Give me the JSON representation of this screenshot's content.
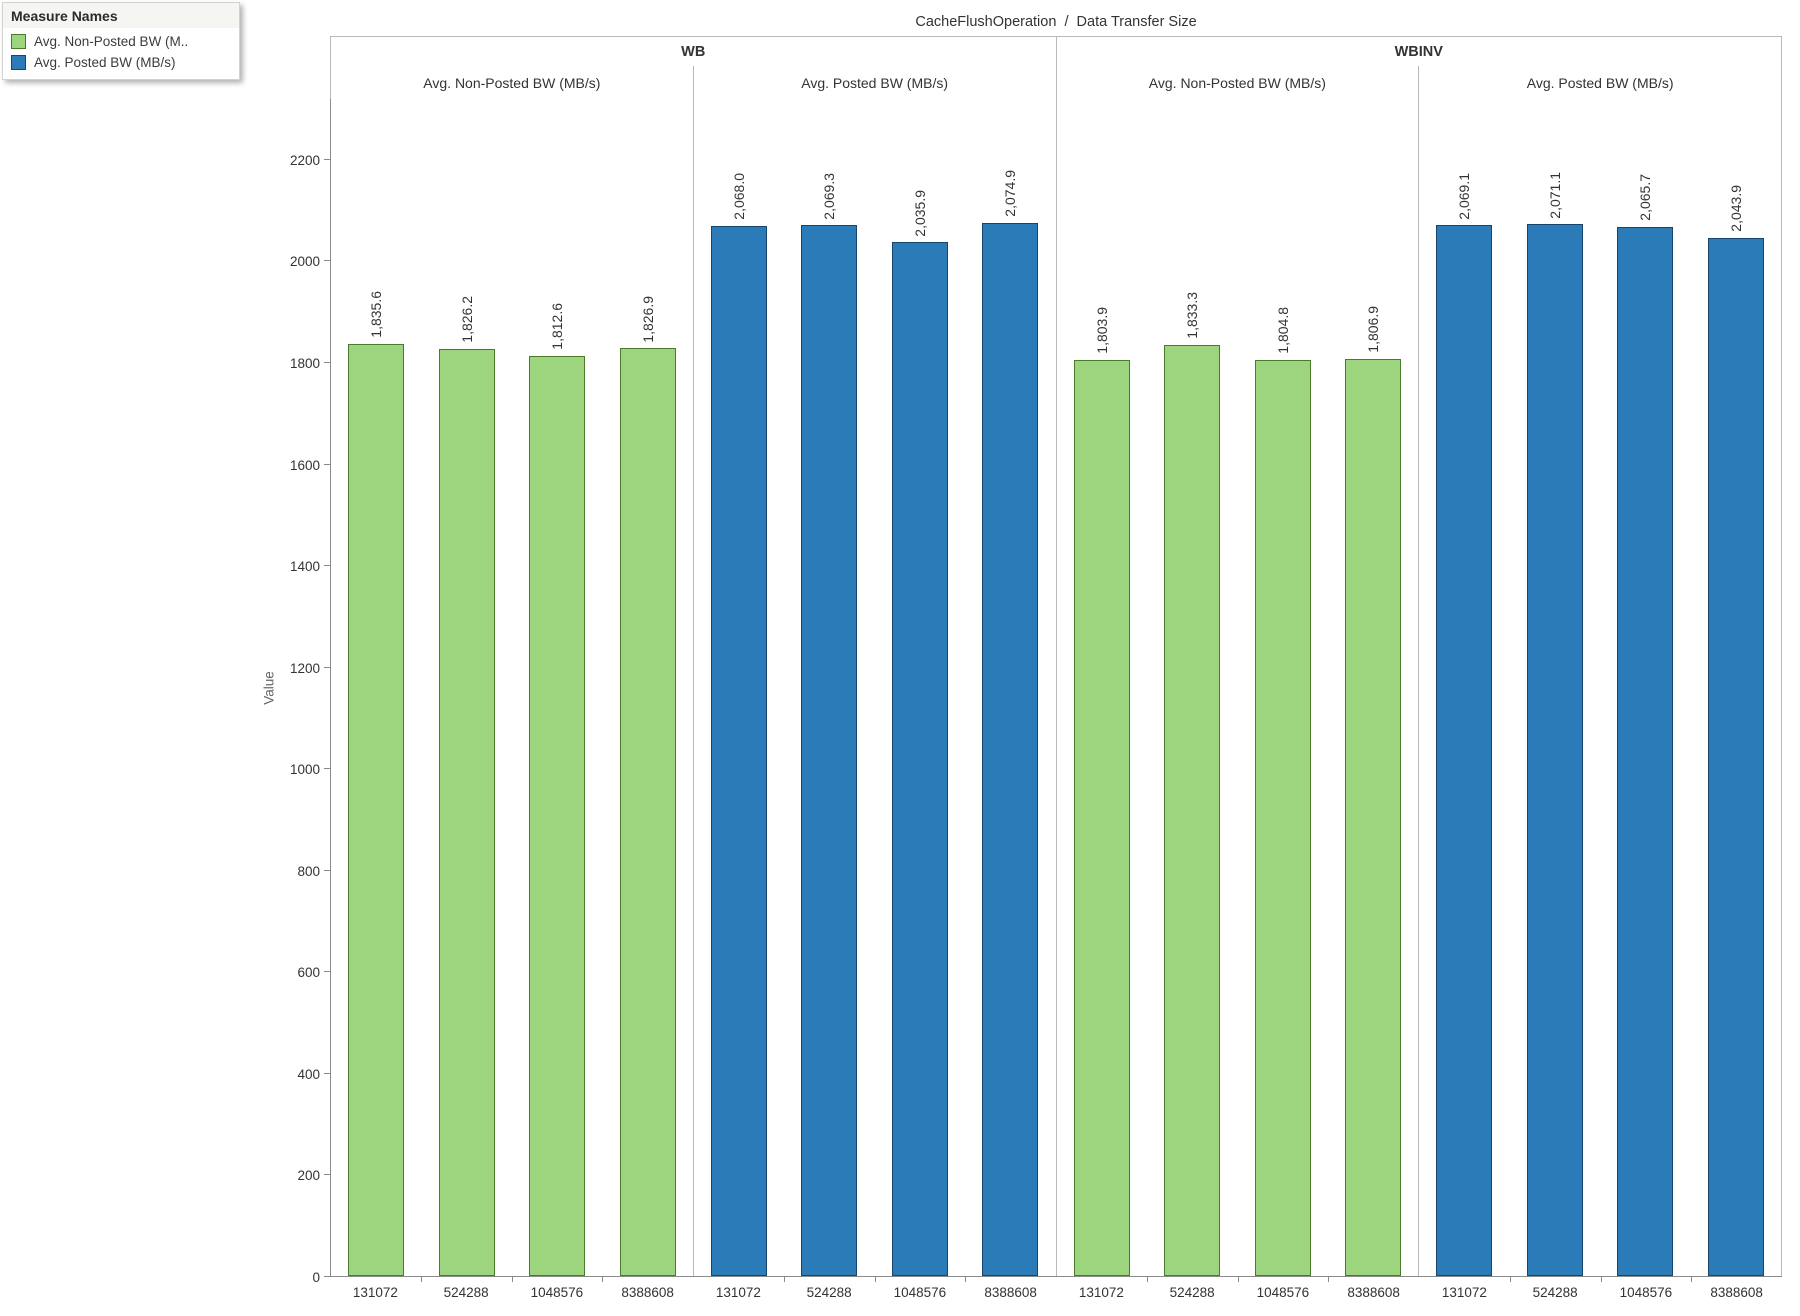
{
  "legend": {
    "title": "Measure Names",
    "items": [
      {
        "label": "Avg. Non-Posted BW (M..",
        "series": "non_posted"
      },
      {
        "label": "Avg. Posted BW (MB/s)",
        "series": "posted"
      }
    ]
  },
  "chart_data": {
    "type": "bar",
    "title": "CacheFlushOperation  /  Data Transfer Size",
    "ylabel": "Value",
    "ylim": [
      0,
      2320
    ],
    "yticks": [
      0,
      200,
      400,
      600,
      800,
      1000,
      1200,
      1400,
      1600,
      1800,
      2000,
      2200
    ],
    "categories": [
      "131072",
      "524288",
      "1048576",
      "8388608"
    ],
    "grid": "off",
    "legend_position": "top-left",
    "series_colors": {
      "non_posted": {
        "fill": "#9CD57E",
        "border": "#4A7A2A"
      },
      "posted": {
        "fill": "#2B7BB9",
        "border": "#17456B"
      }
    },
    "col_groups": [
      {
        "label": "WB",
        "panes": [
          {
            "label": "Avg. Non-Posted BW (MB/s)",
            "series": "non_posted",
            "values": [
              1835.6,
              1826.2,
              1812.6,
              1826.9
            ],
            "bar_labels": [
              "1,835.6",
              "1,826.2",
              "1,812.6",
              "1,826.9"
            ]
          },
          {
            "label": "Avg. Posted BW (MB/s)",
            "series": "posted",
            "values": [
              2068.0,
              2069.3,
              2035.9,
              2074.9
            ],
            "bar_labels": [
              "2,068.0",
              "2,069.3",
              "2,035.9",
              "2,074.9"
            ]
          }
        ]
      },
      {
        "label": "WBINV",
        "panes": [
          {
            "label": "Avg. Non-Posted BW (MB/s)",
            "series": "non_posted",
            "values": [
              1803.9,
              1833.3,
              1804.8,
              1806.9
            ],
            "bar_labels": [
              "1,803.9",
              "1,833.3",
              "1,804.8",
              "1,806.9"
            ]
          },
          {
            "label": "Avg. Posted BW (MB/s)",
            "series": "posted",
            "values": [
              2069.1,
              2071.1,
              2065.7,
              2043.9
            ],
            "bar_labels": [
              "2,069.1",
              "2,071.1",
              "2,065.7",
              "2,043.9"
            ]
          }
        ]
      }
    ]
  }
}
